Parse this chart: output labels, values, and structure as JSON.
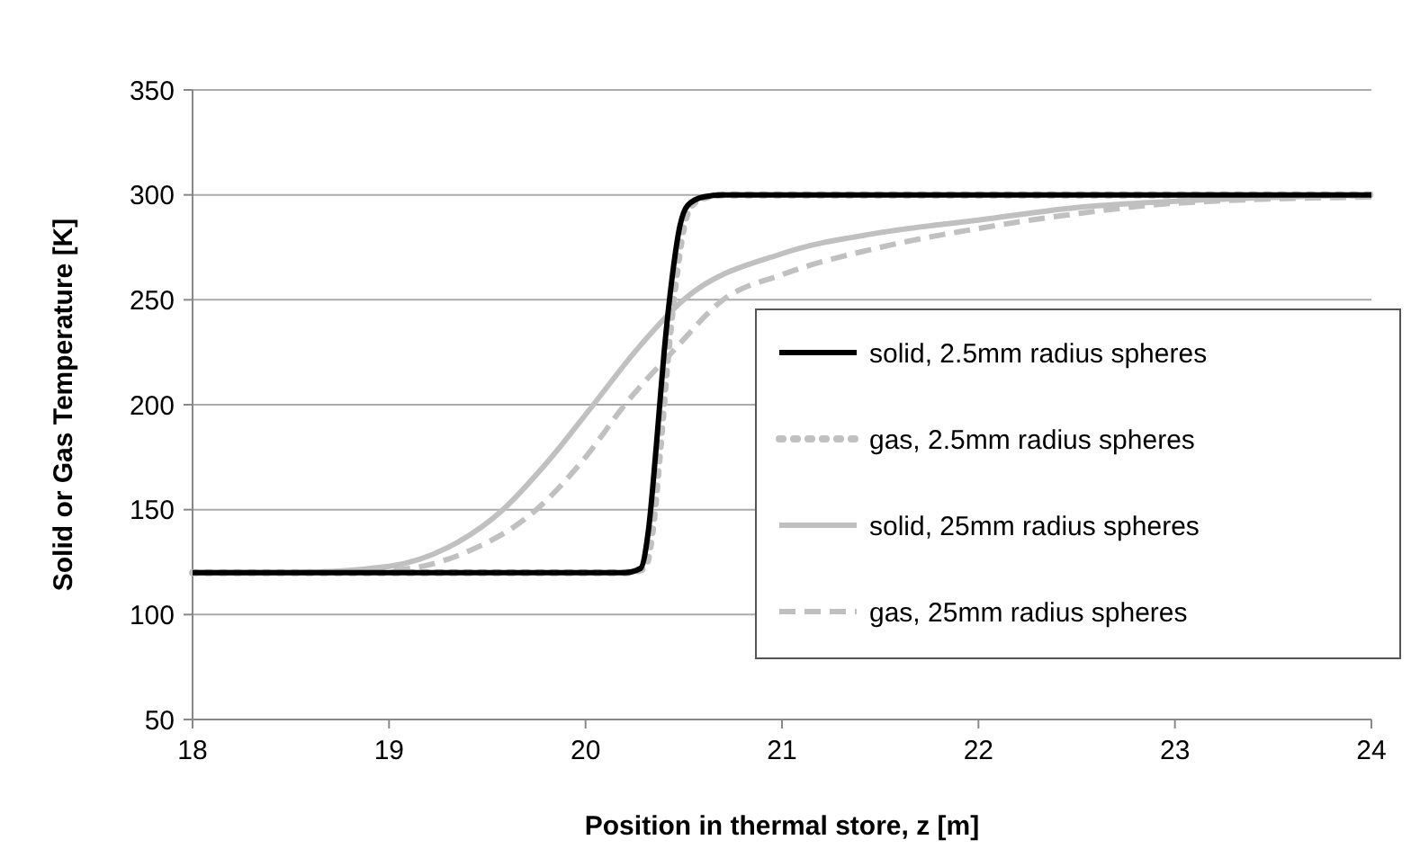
{
  "chart_data": {
    "type": "line",
    "xlabel": "Position in thermal store, z [m]",
    "ylabel": "Solid or Gas Temperature [K]",
    "xlim": [
      18,
      24
    ],
    "ylim": [
      50,
      350
    ],
    "xticks": [
      18,
      19,
      20,
      21,
      22,
      23,
      24
    ],
    "yticks": [
      50,
      100,
      150,
      200,
      250,
      300,
      350
    ],
    "grid": "y",
    "legend": "right",
    "series": [
      {
        "name": "solid, 2.5mm radius spheres",
        "color": "#000000",
        "line_style": "solid",
        "x": [
          18,
          19,
          20,
          20.2,
          20.28,
          20.32,
          20.36,
          20.4,
          20.44,
          20.48,
          20.52,
          20.6,
          20.7,
          21,
          22,
          23,
          24
        ],
        "values": [
          120,
          120,
          120,
          120,
          122,
          140,
          180,
          225,
          260,
          285,
          295,
          299,
          300,
          300,
          300,
          300,
          300
        ]
      },
      {
        "name": "gas, 2.5mm radius spheres",
        "color": "#c0c0c0",
        "line_style": "dotted",
        "x": [
          18,
          19,
          20,
          20.2,
          20.3,
          20.34,
          20.38,
          20.42,
          20.46,
          20.5,
          20.54,
          20.62,
          20.72,
          21,
          22,
          23,
          24
        ],
        "values": [
          120,
          120,
          120,
          120,
          122,
          140,
          180,
          225,
          260,
          285,
          295,
          299,
          300,
          300,
          300,
          300,
          300
        ]
      },
      {
        "name": "solid, 25mm radius spheres",
        "color": "#c0c0c0",
        "line_style": "solid",
        "x": [
          18,
          18.5,
          19,
          19.3,
          19.58,
          19.8,
          20.04,
          20.25,
          20.5,
          21,
          21.5,
          22,
          22.5,
          23,
          24
        ],
        "values": [
          120,
          120,
          123,
          132,
          150,
          172,
          200,
          225,
          250,
          272,
          282,
          288,
          294,
          297,
          300
        ]
      },
      {
        "name": "gas, 25mm radius spheres",
        "color": "#c0c0c0",
        "line_style": "dashed",
        "x": [
          18,
          18.5,
          19,
          19.4,
          19.75,
          20,
          20.2,
          20.45,
          20.7,
          21,
          21.5,
          22,
          22.5,
          23,
          24
        ],
        "values": [
          120,
          120,
          121,
          130,
          150,
          175,
          200,
          226,
          250,
          262,
          275,
          284,
          291,
          296,
          299
        ]
      }
    ]
  }
}
